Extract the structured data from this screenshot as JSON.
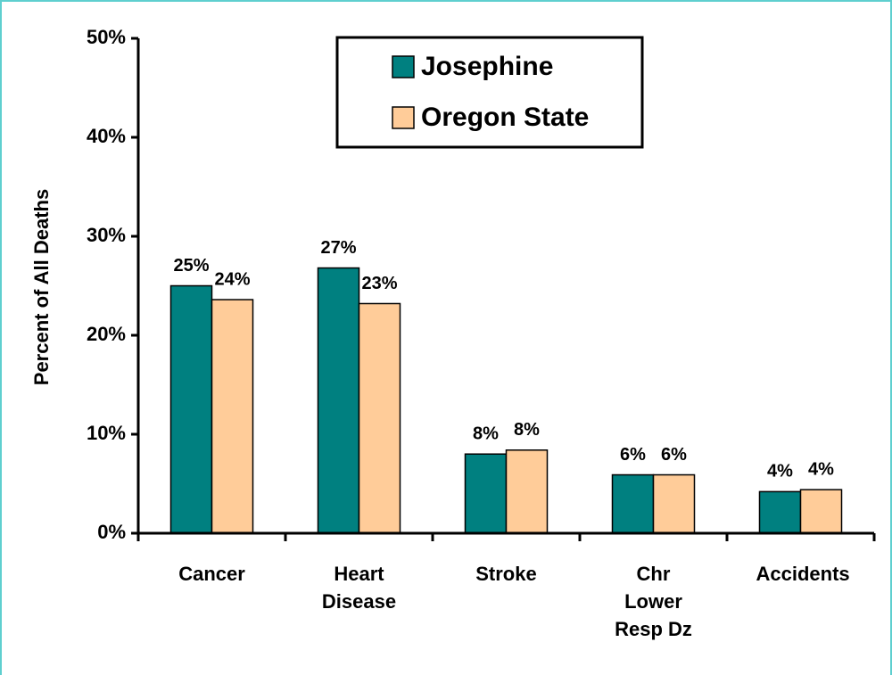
{
  "chart_data": {
    "type": "bar",
    "y_axis_label": "Percent of All Deaths",
    "categories": [
      "Cancer",
      "Heart Disease",
      "Stroke",
      "Chr Lower Resp Dz",
      "Accidents"
    ],
    "series": [
      {
        "name": "Josephine",
        "color": "#008080",
        "values": [
          25,
          26.8,
          8,
          5.9,
          4.2
        ],
        "value_labels": [
          "25%",
          "27%",
          "8%",
          "6%",
          "4%"
        ]
      },
      {
        "name": "Oregon State",
        "color": "#ffcc99",
        "values": [
          23.6,
          23.2,
          8.4,
          5.9,
          4.4
        ],
        "value_labels": [
          "24%",
          "23%",
          "8%",
          "6%",
          "4%"
        ]
      }
    ],
    "ylim": [
      0,
      50
    ],
    "yticks": [
      {
        "value": 0,
        "label": "0%"
      },
      {
        "value": 10,
        "label": "10%"
      },
      {
        "value": 20,
        "label": "20%"
      },
      {
        "value": 30,
        "label": "30%"
      },
      {
        "value": 40,
        "label": "40%"
      },
      {
        "value": 50,
        "label": "50%"
      }
    ]
  }
}
